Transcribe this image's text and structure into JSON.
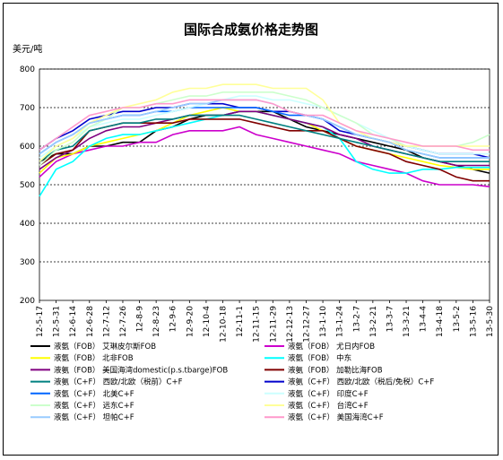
{
  "chart_data": {
    "type": "line",
    "title": "国际合成氨价格走势图",
    "ylabel": "美元/吨",
    "xlabel": "",
    "ylim": [
      200,
      800
    ],
    "yticks": [
      200,
      300,
      400,
      500,
      600,
      700,
      800
    ],
    "grid": "horizontal dashed",
    "legend_position": "bottom",
    "x": [
      "12-5-17",
      "12-5-31",
      "12-6-14",
      "12-6-28",
      "12-7-12",
      "12-7-26",
      "12-8-9",
      "12-8-23",
      "12-9-6",
      "12-9-20",
      "12-10-4",
      "12-10-18",
      "12-11-1",
      "12-11-15",
      "12-11-29",
      "12-12-13",
      "12-12-27",
      "13-1-10",
      "13-1-24",
      "13-2-7",
      "13-2-21",
      "13-3-7",
      "13-3-21",
      "13-4-4",
      "13-4-18",
      "13-5-2",
      "13-5-16",
      "13-5-30"
    ],
    "series": [
      {
        "name": "液氨（FOB）  艾琳皮尔斯FOB",
        "color": "#000000",
        "values": [
          560,
          580,
          580,
          600,
          600,
          610,
          610,
          640,
          650,
          670,
          680,
          680,
          690,
          690,
          690,
          670,
          650,
          640,
          630,
          620,
          610,
          600,
          590,
          570,
          560,
          550,
          540,
          530
        ]
      },
      {
        "name": "液氨（FOB）  尤日内FOB",
        "color": "#cc00cc",
        "values": [
          520,
          560,
          580,
          590,
          600,
          600,
          610,
          610,
          630,
          640,
          640,
          640,
          650,
          630,
          620,
          610,
          600,
          590,
          580,
          560,
          550,
          540,
          530,
          510,
          500,
          500,
          500,
          495
        ]
      },
      {
        "name": "液氨（FOB）  北非FOB",
        "color": "#ffff00",
        "values": [
          530,
          570,
          580,
          600,
          610,
          620,
          630,
          640,
          660,
          680,
          690,
          700,
          690,
          690,
          680,
          670,
          660,
          640,
          620,
          600,
          590,
          580,
          570,
          560,
          550,
          545,
          540,
          540
        ]
      },
      {
        "name": "液氨（FOB）  中东",
        "color": "#00ffff",
        "values": [
          470,
          540,
          560,
          600,
          620,
          630,
          630,
          640,
          650,
          660,
          670,
          680,
          690,
          690,
          680,
          670,
          660,
          650,
          620,
          560,
          540,
          530,
          530,
          540,
          540,
          545,
          545,
          545
        ]
      },
      {
        "name": "液氨（FOB）  美国海湾domestic(p.s.tbarge)FOB",
        "color": "#800080",
        "values": [
          540,
          570,
          590,
          620,
          640,
          650,
          650,
          660,
          670,
          680,
          680,
          680,
          690,
          690,
          680,
          670,
          660,
          650,
          630,
          620,
          600,
          590,
          580,
          570,
          560,
          550,
          550,
          550
        ]
      },
      {
        "name": "液氨（FOB）  加勒比海FOB",
        "color": "#800000",
        "values": [
          550,
          580,
          590,
          640,
          650,
          660,
          660,
          660,
          660,
          670,
          670,
          670,
          670,
          660,
          650,
          640,
          640,
          640,
          620,
          600,
          590,
          580,
          560,
          550,
          540,
          520,
          510,
          510
        ]
      },
      {
        "name": "液氨（C+F）  西欧/北欧（税前）C+F",
        "color": "#008080",
        "values": [
          560,
          590,
          600,
          640,
          650,
          660,
          660,
          670,
          670,
          680,
          680,
          680,
          680,
          670,
          660,
          650,
          640,
          630,
          620,
          610,
          600,
          590,
          580,
          570,
          560,
          560,
          560,
          560
        ]
      },
      {
        "name": "液氨（C+F）  西欧/北欧（税后/免税）C+F",
        "color": "#0000cc",
        "values": [
          590,
          620,
          640,
          670,
          680,
          690,
          690,
          700,
          700,
          710,
          710,
          710,
          700,
          700,
          690,
          690,
          680,
          670,
          640,
          630,
          620,
          610,
          600,
          590,
          580,
          580,
          580,
          570
        ]
      },
      {
        "name": "液氨（C+F）  北美C+F",
        "color": "#0066ff",
        "values": [
          580,
          610,
          630,
          660,
          670,
          680,
          680,
          690,
          690,
          700,
          700,
          700,
          700,
          700,
          690,
          680,
          680,
          670,
          650,
          630,
          620,
          610,
          590,
          580,
          570,
          570,
          570,
          570
        ]
      },
      {
        "name": "液氨（C+F）  印度C+F",
        "color": "#ccffff",
        "values": [
          570,
          600,
          620,
          650,
          660,
          670,
          670,
          680,
          690,
          700,
          710,
          720,
          730,
          730,
          720,
          720,
          710,
          700,
          680,
          660,
          640,
          620,
          600,
          590,
          580,
          580,
          580,
          580
        ]
      },
      {
        "name": "液氨（C+F）  远东C+F",
        "color": "#ccffcc",
        "values": [
          550,
          590,
          610,
          650,
          670,
          700,
          700,
          710,
          720,
          730,
          730,
          740,
          740,
          740,
          740,
          730,
          720,
          700,
          680,
          660,
          630,
          620,
          600,
          600,
          600,
          600,
          610,
          630
        ]
      },
      {
        "name": "液氨（C+F）  台湾C+F",
        "color": "#ffff99",
        "values": [
          560,
          600,
          620,
          660,
          680,
          700,
          710,
          720,
          740,
          750,
          750,
          760,
          760,
          760,
          750,
          750,
          750,
          720,
          660,
          640,
          620,
          610,
          600,
          600,
          600,
          600,
          600,
          600
        ]
      },
      {
        "name": "液氨（C+F）  坦帕C+F",
        "color": "#99ccff",
        "values": [
          580,
          610,
          630,
          660,
          670,
          680,
          680,
          690,
          700,
          710,
          710,
          720,
          720,
          720,
          710,
          690,
          680,
          670,
          650,
          630,
          620,
          610,
          590,
          580,
          570,
          570,
          570,
          570
        ]
      },
      {
        "name": "液氨（C+F）  美国海湾C+F",
        "color": "#ff99cc",
        "values": [
          590,
          620,
          650,
          680,
          690,
          700,
          700,
          710,
          710,
          720,
          720,
          720,
          720,
          720,
          710,
          690,
          680,
          680,
          660,
          640,
          630,
          620,
          610,
          600,
          600,
          600,
          590,
          590
        ]
      }
    ]
  }
}
